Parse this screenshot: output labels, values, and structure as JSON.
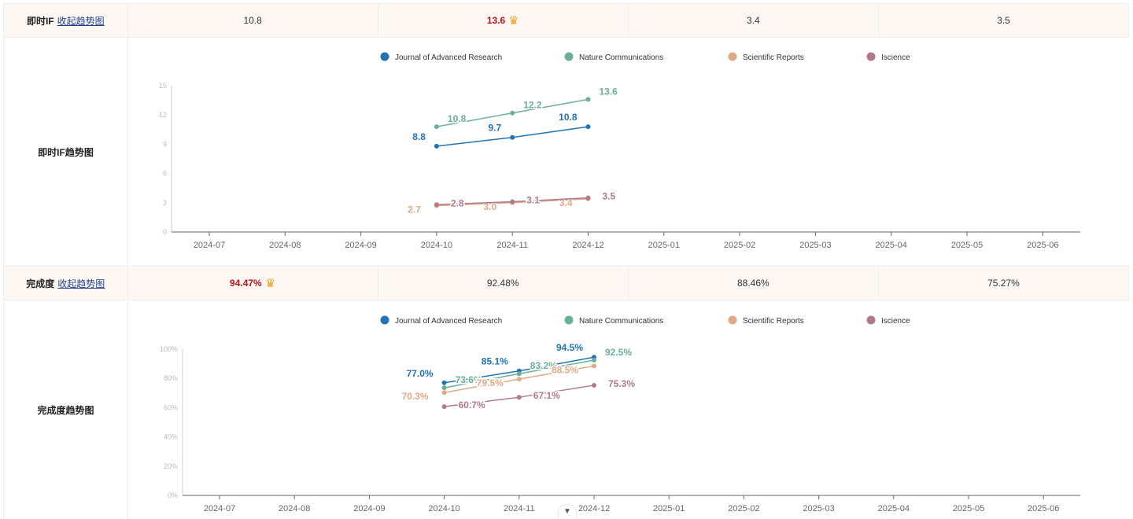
{
  "legend": [
    {
      "name": "Journal of Advanced Research",
      "color": "#2273b5"
    },
    {
      "name": "Nature Communications",
      "color": "#6aaf9b"
    },
    {
      "name": "Scientific Reports",
      "color": "#e2a886"
    },
    {
      "name": "Iscience",
      "color": "#b07a8c"
    }
  ],
  "if_row": {
    "label": "即时IF",
    "toggle": "收起趋势图",
    "values": [
      "10.8",
      "13.6",
      "3.4",
      "3.5"
    ],
    "best_index": 1,
    "chart_label": "即时IF趋势图"
  },
  "comp_row": {
    "label": "完成度",
    "toggle": "收起趋势图",
    "values": [
      "94.47%",
      "92.48%",
      "88.46%",
      "75.27%"
    ],
    "best_index": 0,
    "chart_label": "完成度趋势图"
  },
  "crown_icon": "crown-icon",
  "chart_data": [
    {
      "type": "line",
      "categories": [
        "2024-07",
        "2024-08",
        "2024-09",
        "2024-10",
        "2024-11",
        "2024-12",
        "2025-01",
        "2025-02",
        "2025-03",
        "2025-04",
        "2025-05",
        "2025-06"
      ],
      "yticks": [
        "0",
        "3",
        "6",
        "9",
        "12",
        "15"
      ],
      "ylim": [
        0,
        15
      ],
      "suffix": "",
      "series": [
        {
          "name": "Journal of Advanced Research",
          "x": [
            "2024-10",
            "2024-11",
            "2024-12"
          ],
          "values": [
            8.8,
            9.7,
            10.8
          ]
        },
        {
          "name": "Nature Communications",
          "x": [
            "2024-10",
            "2024-11",
            "2024-12"
          ],
          "values": [
            10.8,
            12.2,
            13.6
          ]
        },
        {
          "name": "Scientific Reports",
          "x": [
            "2024-10",
            "2024-11",
            "2024-12"
          ],
          "values": [
            2.7,
            3.0,
            3.4
          ]
        },
        {
          "name": "Iscience",
          "x": [
            "2024-10",
            "2024-11",
            "2024-12"
          ],
          "values": [
            2.8,
            3.1,
            3.5
          ]
        }
      ],
      "labels": [
        [
          "8.8",
          "9.7",
          "10.8"
        ],
        [
          "10.8",
          "12.2",
          "13.6"
        ],
        [
          "2.7",
          "3.0",
          "3.4"
        ],
        [
          "2.8",
          "3.1",
          "3.5"
        ]
      ]
    },
    {
      "type": "line",
      "categories": [
        "2024-07",
        "2024-08",
        "2024-09",
        "2024-10",
        "2024-11",
        "2024-12",
        "2025-01",
        "2025-02",
        "2025-03",
        "2025-04",
        "2025-05",
        "2025-06"
      ],
      "yticks": [
        "0%",
        "20%",
        "40%",
        "60%",
        "80%",
        "100%"
      ],
      "ylim": [
        0,
        100
      ],
      "suffix": "%",
      "series": [
        {
          "name": "Journal of Advanced Research",
          "x": [
            "2024-10",
            "2024-11",
            "2024-12"
          ],
          "values": [
            77.0,
            85.1,
            94.5
          ]
        },
        {
          "name": "Nature Communications",
          "x": [
            "2024-10",
            "2024-11",
            "2024-12"
          ],
          "values": [
            73.6,
            83.2,
            92.5
          ]
        },
        {
          "name": "Scientific Reports",
          "x": [
            "2024-10",
            "2024-11",
            "2024-12"
          ],
          "values": [
            70.3,
            79.5,
            88.5
          ]
        },
        {
          "name": "Iscience",
          "x": [
            "2024-10",
            "2024-11",
            "2024-12"
          ],
          "values": [
            60.7,
            67.1,
            75.3
          ]
        }
      ],
      "labels": [
        [
          "77.0%",
          "85.1%",
          "94.5%"
        ],
        [
          "73.6%",
          "83.2%",
          "92.5%"
        ],
        [
          "70.3%",
          "79.5%",
          "88.5%"
        ],
        [
          "60.7%",
          "67.1%",
          "75.3%"
        ]
      ]
    }
  ]
}
